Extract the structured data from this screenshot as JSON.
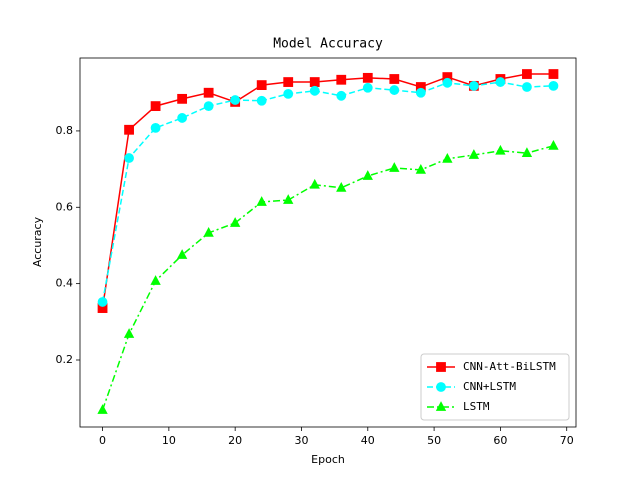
{
  "chart_data": {
    "type": "line",
    "title": "Model Accuracy",
    "x_label": "Epoch",
    "y_label": "Accuracy",
    "x": [
      0,
      4,
      8,
      12,
      16,
      20,
      24,
      28,
      32,
      36,
      40,
      44,
      48,
      52,
      56,
      60,
      64,
      68
    ],
    "series": [
      {
        "name": "CNN-Att-BiLSTM",
        "color": "#ff0000",
        "linestyle": "solid",
        "marker": "square",
        "values": [
          0.336,
          0.803,
          0.865,
          0.884,
          0.9,
          0.876,
          0.92,
          0.928,
          0.928,
          0.934,
          0.939,
          0.936,
          0.915,
          0.941,
          0.918,
          0.936,
          0.949,
          0.949
        ]
      },
      {
        "name": "CNN+LSTM",
        "color": "#00ffff",
        "linestyle": "dashed",
        "marker": "circle",
        "values": [
          0.352,
          0.729,
          0.808,
          0.834,
          0.865,
          0.881,
          0.879,
          0.897,
          0.905,
          0.892,
          0.913,
          0.907,
          0.9,
          0.926,
          0.918,
          0.928,
          0.915,
          0.918
        ]
      },
      {
        "name": "LSTM",
        "color": "#00ff00",
        "linestyle": "dashdot",
        "marker": "triangle",
        "values": [
          0.069,
          0.268,
          0.407,
          0.475,
          0.533,
          0.559,
          0.614,
          0.619,
          0.659,
          0.651,
          0.682,
          0.703,
          0.698,
          0.727,
          0.737,
          0.748,
          0.742,
          0.761
        ]
      }
    ],
    "xlim": [
      -3.4,
      71.4
    ],
    "xticks": [
      0,
      10,
      20,
      30,
      40,
      50,
      60,
      70
    ],
    "ylim": [
      0.0245,
      0.991
    ],
    "yticks": [
      0.2,
      0.4,
      0.6,
      0.8
    ],
    "grid": false,
    "legend": "lower right"
  }
}
